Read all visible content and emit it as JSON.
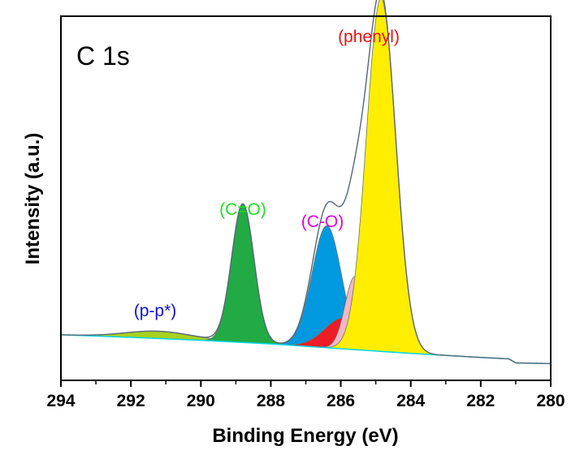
{
  "chart_data": {
    "type": "area",
    "title": "C 1s",
    "xlabel": "Binding Energy (eV)",
    "ylabel": "Intensity (a.u.)",
    "xlim": [
      294,
      280
    ],
    "x_reversed": true,
    "ylim": [
      0,
      100
    ],
    "y_ticks_shown": false,
    "grid": false,
    "x_ticks": [
      294,
      292,
      290,
      288,
      286,
      284,
      282,
      280
    ],
    "x_tick_labels": [
      "294",
      "292",
      "290",
      "288",
      "286",
      "284",
      "282",
      "280"
    ],
    "background": {
      "name": "",
      "color": "#00d8e8",
      "points": [
        [
          294,
          12.5
        ],
        [
          292,
          11.8
        ],
        [
          290,
          11.0
        ],
        [
          288,
          10.0
        ],
        [
          286,
          8.7
        ],
        [
          284,
          7.4
        ],
        [
          282,
          6.3
        ],
        [
          281.2,
          5.9
        ],
        [
          281.0,
          4.8
        ],
        [
          280,
          4.6
        ]
      ]
    },
    "peaks": [
      {
        "name": "(p-p*)",
        "label": "(p-p*)",
        "center": 291.2,
        "height": 2.0,
        "sigma": 0.95,
        "fill": "#a8d020",
        "label_color": "#1010d0"
      },
      {
        "name": "(C=O)",
        "label": "(C=O)",
        "center": 288.8,
        "height": 38.0,
        "sigma": 0.32,
        "fill": "#22aa44",
        "label_color": "#22dd22"
      },
      {
        "name": "(C-O)",
        "label": "(C-O)",
        "center": 286.4,
        "height": 33.5,
        "sigma": 0.42,
        "fill": "#0099e0",
        "label_color": "#e000e0"
      },
      {
        "name": "",
        "label": "",
        "center": 285.9,
        "height": 8.5,
        "sigma": 0.55,
        "fill": "#ee1c24",
        "label_color": ""
      },
      {
        "name": "",
        "label": "",
        "center": 285.6,
        "height": 20.0,
        "sigma": 0.28,
        "fill": "#f4b6c8",
        "label_color": ""
      },
      {
        "name": "(phenyl)",
        "label": "(phenyl)",
        "center": 284.85,
        "height": 97.0,
        "sigma": 0.42,
        "fill": "#ffee00",
        "label_color": "#ee1111"
      }
    ],
    "envelope_color": "#556677"
  }
}
